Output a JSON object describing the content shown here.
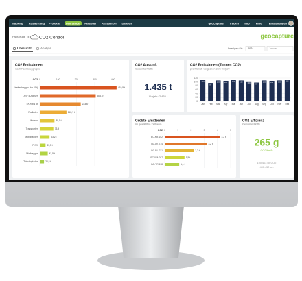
{
  "nav": {
    "left_items": [
      "Tracking",
      "Auswertung",
      "Projekte",
      "Fahrzeuge",
      "Personal",
      "Ressourcen",
      "Dateien"
    ],
    "active_index": 3,
    "right_items": [
      "geoCapture",
      "Tracker",
      "Info",
      "Hilfe",
      "Einstellungen"
    ]
  },
  "header": {
    "breadcrumb": "Fahrzeuge",
    "title": "CO2 Control",
    "logo": "geocapture",
    "tabs": [
      "Übersicht",
      "Analyse"
    ],
    "filter_label": "Anzeigen für:",
    "year": "2024",
    "month": "Januar"
  },
  "cards": {
    "ausstoss": {
      "title": "CO2 Ausstoß",
      "subtitle": "Gesamte Flotte",
      "value": "1.435 t",
      "previous": "Vorjahr: 2.435 t"
    },
    "effizienz": {
      "title": "CO2 Effizienz",
      "subtitle": "Gesamte Flotte",
      "value": "265 g",
      "unit": "CO2/km/h",
      "line1": "100.403 kg CO2",
      "line2": "400.452 km"
    }
  },
  "chart_data": [
    {
      "type": "hbar",
      "title": "CO2 Emissionen",
      "subtitle": "nach Fahrzeuggruppe",
      "x_label": "CO2",
      "categories": [
        "Kettenbagger (bis 15t)",
        "LKW 4-Achser",
        "LKW bis 3t",
        "Radlader",
        "Walzen",
        "Transporter",
        "Mobilbagger",
        "PKW",
        "Minibagger",
        "Teleskoplader"
      ],
      "values": [
        419.5,
        305.5,
        223.6,
        145.7,
        80.0,
        73.9,
        53.2,
        31.3,
        43.5,
        22.8
      ],
      "value_labels": [
        "419,5 t",
        "305,5 t",
        "223,6 t",
        "145,7 t",
        "80,0 t",
        "73,9 t",
        "53,2 t",
        "31,3 t",
        "43,5 t",
        "22,8 t"
      ],
      "colors": [
        "#d9541f",
        "#e0692a",
        "#e6892f",
        "#ecac36",
        "#e3c53a",
        "#d6d43a",
        "#c9d63b",
        "#bcd63e",
        "#b2d444",
        "#a8d04a"
      ],
      "xlim": [
        0,
        450
      ],
      "xticks": [
        0,
        100,
        200,
        300,
        400
      ]
    },
    {
      "type": "bar",
      "title": "CO2 Emissionen (Tonnen CO2)",
      "subtitle": "pro Monat, verglichen zum Vorjahr",
      "categories": [
        "Jan",
        "Feb",
        "Mär",
        "Apr",
        "Mai",
        "Jun",
        "Jul",
        "Aug",
        "Sep",
        "Okt",
        "Nov",
        "Dez"
      ],
      "values": [
        110,
        95,
        108,
        106,
        110,
        108,
        103,
        97,
        108,
        106,
        108,
        112
      ],
      "color": "#1f2f52",
      "ylim": [
        0,
        120
      ],
      "yticks": [
        0,
        20,
        40,
        60,
        80,
        100,
        120
      ]
    },
    {
      "type": "hbar",
      "title": "Größte Emittenten",
      "subtitle": "im gewählten Zeitraum",
      "x_label": "CO2",
      "categories": [
        "BC-KB 102",
        "BC-LK 214",
        "BC-RL 031",
        "BC-WA 007",
        "BC-TR 118"
      ],
      "values": [
        4.2,
        3.2,
        2.2,
        1.5,
        1.1
      ],
      "value_labels": [
        "4,2 t",
        "3,2 t",
        "2,2 t",
        "1,5 t",
        "1,1 t"
      ],
      "colors": [
        "#d9541f",
        "#e0772b",
        "#e3b436",
        "#cdd63a",
        "#b4d345"
      ],
      "xlim": [
        0,
        5
      ],
      "xticks": [
        0,
        1,
        2,
        3,
        4,
        5
      ]
    }
  ]
}
